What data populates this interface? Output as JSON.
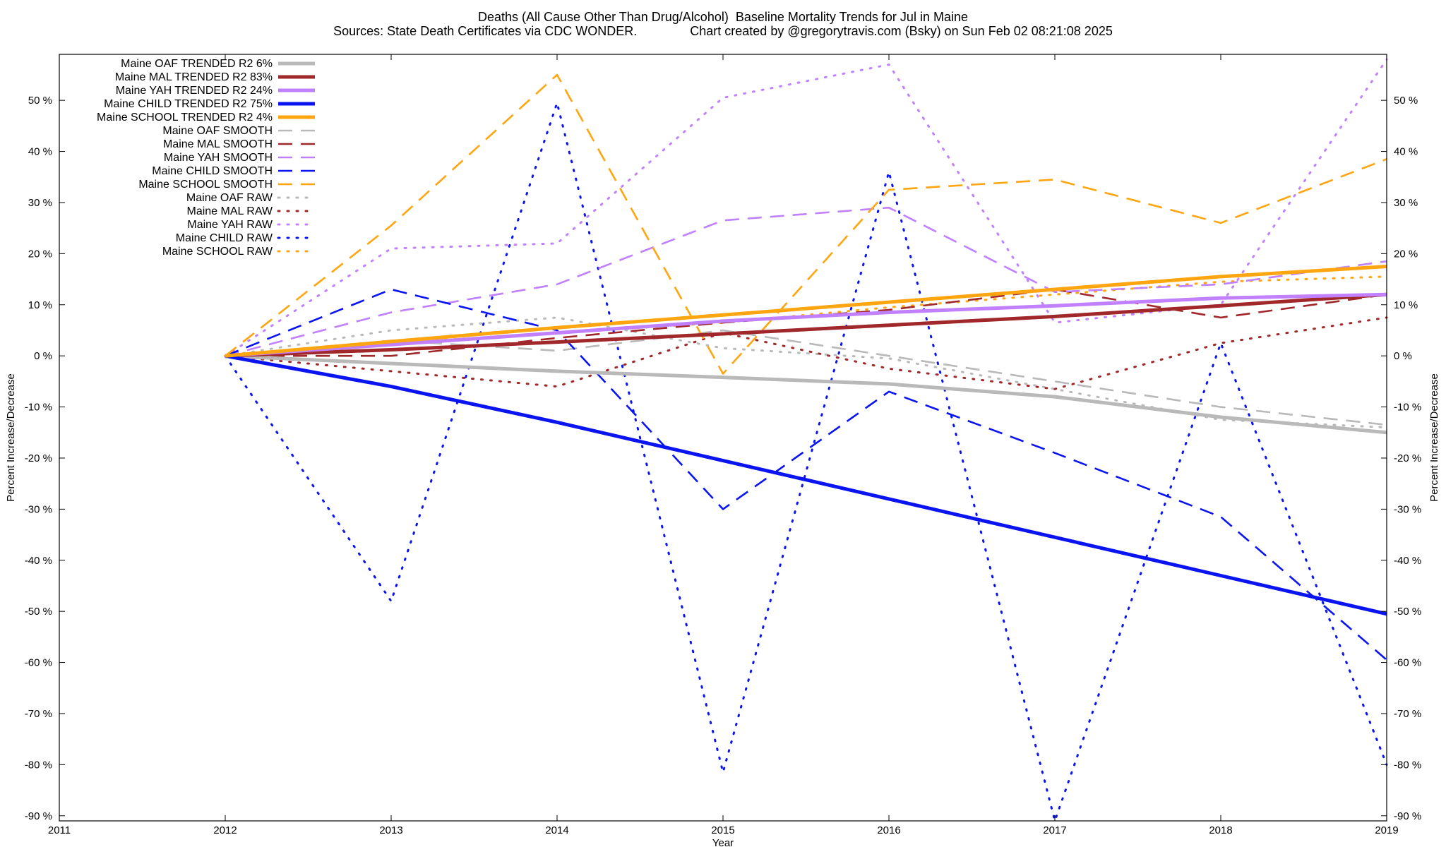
{
  "chart_data": {
    "type": "line",
    "title": "Deaths (All Cause Other Than Drug/Alcohol)  Baseline Mortality Trends for Jul in Maine",
    "subtitle": "Sources: State Death Certificates via CDC WONDER.               Chart created by @gregorytravis.com (Bsky) on Sun Feb 02 08:21:08 2025",
    "xlabel": "Year",
    "ylabel_left": "Percent Increase/Decrease",
    "ylabel_right": "Percent Increase/Decrease",
    "xlim": [
      2011,
      2019
    ],
    "ylim": [
      -91,
      59
    ],
    "x_ticks": [
      2011,
      2012,
      2013,
      2014,
      2015,
      2016,
      2017,
      2018,
      2019
    ],
    "y_ticks": [
      -90,
      -80,
      -70,
      -60,
      -50,
      -40,
      -30,
      -20,
      -10,
      0,
      10,
      20,
      30,
      40,
      50
    ],
    "y_tick_labels": [
      "-90 %",
      "-80 %",
      "-70 %",
      "-60 %",
      "-50 %",
      "-40 %",
      "-30 %",
      "-20 %",
      "-10 %",
      "0 %",
      "10 %",
      "20 %",
      "30 %",
      "40 %",
      "50 %"
    ],
    "grid": false,
    "legend_position": "top-left",
    "x": [
      2012,
      2013,
      2014,
      2015,
      2016,
      2017,
      2018,
      2019
    ],
    "series": [
      {
        "name": "Maine OAF TRENDED R2  6%",
        "style": "trend",
        "color": "#b9b9b9",
        "values": [
          0,
          -1.5,
          -3,
          -4.2,
          -5.5,
          -8,
          -12,
          -15
        ]
      },
      {
        "name": "Maine MAL TRENDED R2  83%",
        "style": "trend",
        "color": "#a0282a",
        "values": [
          0,
          1.2,
          2.7,
          4.3,
          6,
          7.7,
          9.8,
          12
        ]
      },
      {
        "name": "Maine YAH TRENDED R2  24%",
        "style": "trend",
        "color": "#c080ff",
        "values": [
          0,
          2.2,
          4.5,
          6.8,
          8.5,
          9.8,
          11.3,
          12
        ]
      },
      {
        "name": "Maine CHILD TRENDED R2  75%",
        "style": "trend",
        "color": "#0a14f0",
        "values": [
          0,
          -6,
          -13,
          -20.5,
          -28,
          -35.5,
          -43,
          -50.5
        ]
      },
      {
        "name": "Maine SCHOOL TRENDED R2  4%",
        "style": "trend",
        "color": "#ffa510",
        "values": [
          0,
          2.8,
          5.5,
          8,
          10.5,
          13,
          15.5,
          17.5
        ]
      },
      {
        "name": "Maine OAF SMOOTH",
        "style": "smooth",
        "color": "#b9b9b9",
        "values": [
          0,
          3,
          1,
          5,
          0,
          -5,
          -10,
          -13.5
        ]
      },
      {
        "name": "Maine MAL SMOOTH",
        "style": "smooth",
        "color": "#a0282a",
        "values": [
          0,
          0,
          3.5,
          6.5,
          9,
          13,
          7.5,
          12
        ]
      },
      {
        "name": "Maine YAH SMOOTH",
        "style": "smooth",
        "color": "#c080ff",
        "values": [
          0,
          8.5,
          14,
          26.5,
          29,
          12.5,
          14,
          18.5
        ]
      },
      {
        "name": "Maine CHILD SMOOTH",
        "style": "smooth",
        "color": "#0a14f0",
        "values": [
          0,
          13,
          5,
          -30,
          -7,
          -19,
          -31.5,
          -59.5
        ]
      },
      {
        "name": "Maine SCHOOL SMOOTH",
        "style": "smooth",
        "color": "#ffa510",
        "values": [
          0,
          25.5,
          55,
          -3.5,
          32.5,
          34.5,
          26,
          38.5
        ]
      },
      {
        "name": "Maine OAF RAW",
        "style": "raw",
        "color": "#b9b9b9",
        "values": [
          0,
          5,
          7.5,
          1.5,
          -0.5,
          -6.5,
          -12.5,
          -14
        ]
      },
      {
        "name": "Maine MAL RAW",
        "style": "raw",
        "color": "#a0282a",
        "values": [
          0,
          -3,
          -6,
          4.5,
          -2.5,
          -6.5,
          2.5,
          7.5
        ]
      },
      {
        "name": "Maine YAH RAW",
        "style": "raw",
        "color": "#c080ff",
        "values": [
          0,
          21,
          22,
          50.5,
          57,
          6.5,
          10,
          58
        ]
      },
      {
        "name": "Maine CHILD RAW",
        "style": "raw",
        "color": "#0a14f0",
        "values": [
          0,
          -48,
          49.5,
          -81.5,
          36,
          -91,
          2.5,
          -80
        ]
      },
      {
        "name": "Maine SCHOOL RAW",
        "style": "raw",
        "color": "#ffa510",
        "values": [
          0,
          2.5,
          4.5,
          6.5,
          9.5,
          12,
          14.5,
          15.5
        ]
      }
    ]
  }
}
